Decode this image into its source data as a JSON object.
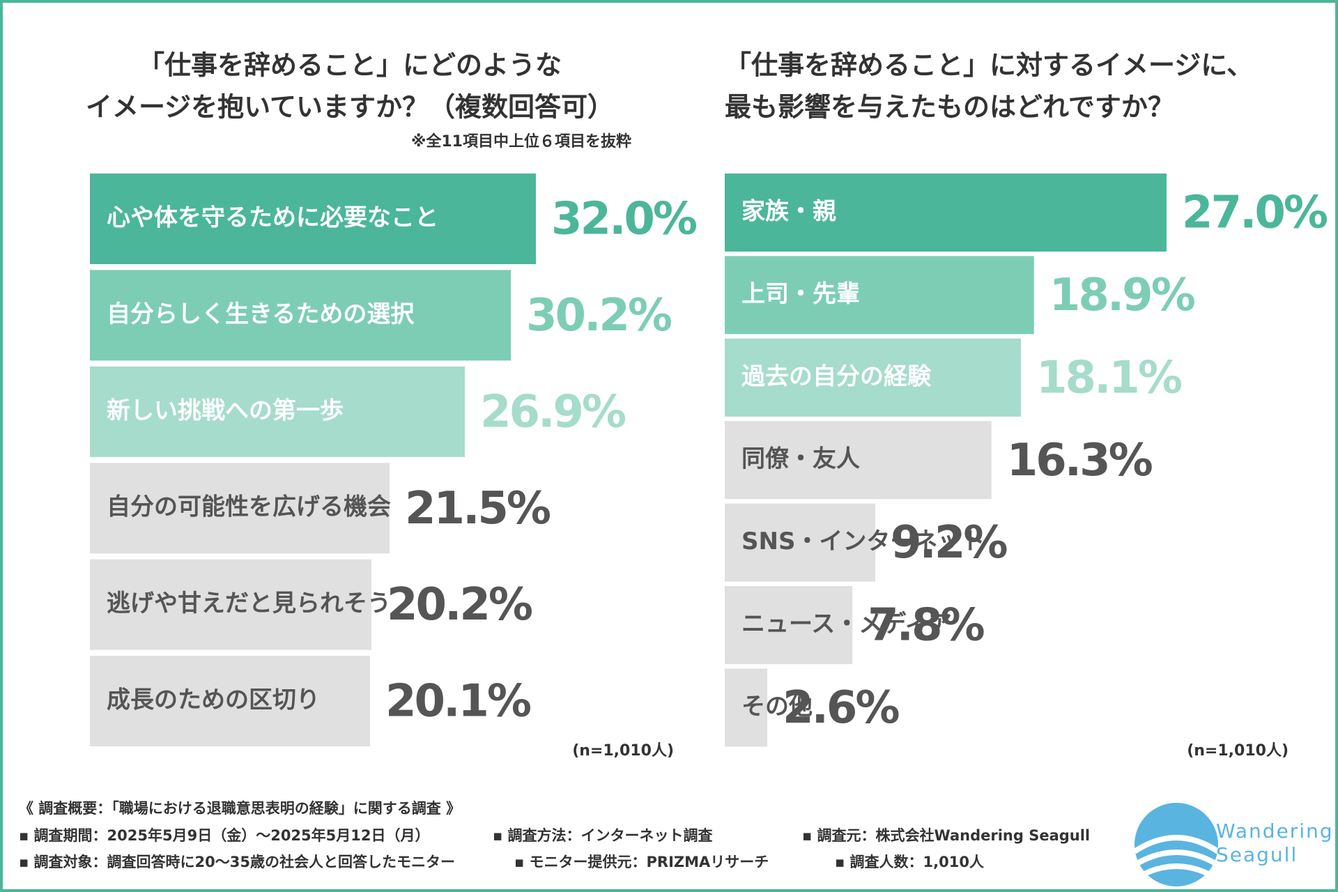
{
  "chart_data": [
    {
      "type": "hbar",
      "title": [
        "「仕事を辞めること」にどのような",
        "イメージを抱いていますか？（複数回答可）"
      ],
      "subtitle": "※全11項目中上位６項目を抜粋",
      "note": "(n=1,010人)",
      "categories": [
        "心や体を守るために必要なこと",
        "自分らしく生きるための選択",
        "新しい挑戦への第一歩",
        "自分の可能性を広げる機会",
        "逃げや甘えだと見られそう",
        "成長のための区切り"
      ],
      "values": [
        32.0,
        30.2,
        26.9,
        21.5,
        20.2,
        20.1
      ],
      "value_labels": [
        "32.0%",
        "30.2%",
        "26.9%",
        "21.5%",
        "20.2%",
        "20.1%"
      ],
      "colors": [
        "#4bb69a",
        "#7dcdb5",
        "#a6dccb",
        "#e0e0e0",
        "#e0e0e0",
        "#e0e0e0"
      ],
      "category_label_colors": [
        "#ffffff",
        "#ffffff",
        "#ffffff",
        "#555555",
        "#555555",
        "#555555"
      ],
      "value_label_colors": [
        "#4bb69a",
        "#7dcdb5",
        "#a6dccb",
        "#555555",
        "#555555",
        "#555555"
      ]
    },
    {
      "type": "hbar",
      "title": [
        "「仕事を辞めること」に対するイメージに、",
        "最も影響を与えたものはどれですか？"
      ],
      "note": "(n=1,010人)",
      "categories": [
        "家族・親",
        "上司・先輩",
        "過去の自分の経験",
        "同僚・友人",
        "SNS・インターネット",
        "ニュース・メディア",
        "その他"
      ],
      "values": [
        27.0,
        18.9,
        18.1,
        16.3,
        9.2,
        7.8,
        2.6
      ],
      "value_labels": [
        "27.0%",
        "18.9%",
        "18.1%",
        "16.3%",
        "9.2%",
        "7.8%",
        "2.6%"
      ],
      "colors": [
        "#4bb69a",
        "#7dcdb5",
        "#a6dccb",
        "#e0e0e0",
        "#e0e0e0",
        "#e0e0e0",
        "#e0e0e0"
      ],
      "category_label_colors": [
        "#ffffff",
        "#ffffff",
        "#ffffff",
        "#555555",
        "#555555",
        "#555555",
        "#555555"
      ],
      "value_label_colors": [
        "#4bb69a",
        "#7dcdb5",
        "#a6dccb",
        "#555555",
        "#555555",
        "#555555",
        "#555555"
      ]
    }
  ],
  "footer": {
    "heading": "《 調査概要：「職場における退職意思表明の経験」に関する調査 》",
    "rows": [
      [
        "▪ 調査期間：2025年5月9日（金）～2025年5月12日（月）",
        "▪ 調査方法：インターネット調査",
        "▪ 調査元：株式会社Wandering Seagull"
      ],
      [
        "▪ 調査対象：調査回答時に20～35歳の社会人と回答したモニター",
        "▪ モニター提供元：PRIZMAリサーチ",
        "▪ 調査人数：1,010人"
      ]
    ]
  },
  "logo": {
    "lines": [
      "Wandering",
      "Seagull"
    ]
  }
}
